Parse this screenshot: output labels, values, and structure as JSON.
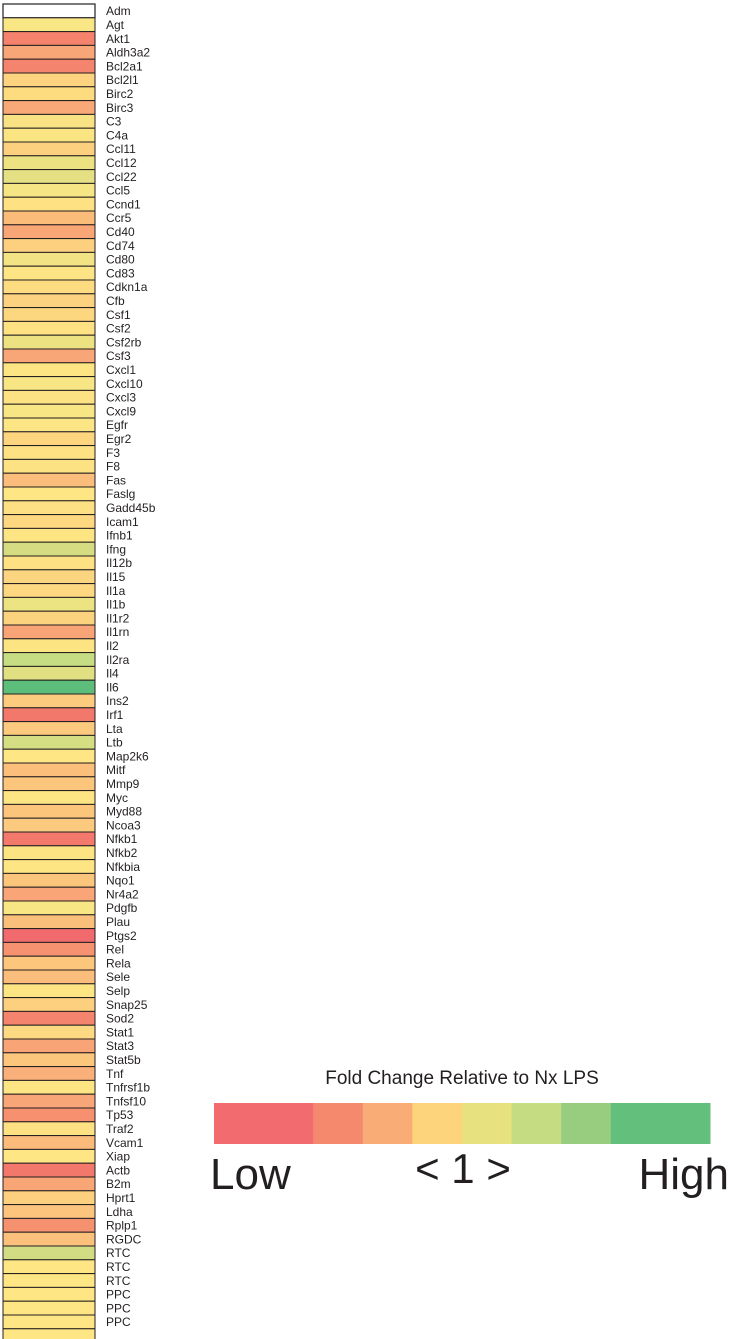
{
  "chart_data": {
    "type": "heatmap",
    "color_scale": {
      "title": "Fold Change Relative to Nx LPS",
      "low_label": "Low",
      "mid_label": "< 1 >",
      "high_label": "High",
      "colors": [
        "#f26b6e",
        "#f26b6e",
        "#f5896e",
        "#f9ac76",
        "#fdd47c",
        "#e8e17f",
        "#c5dc82",
        "#98cd80",
        "#63bf7c",
        "#63bf7c"
      ]
    },
    "columns": [
      ""
    ],
    "rows": [
      {
        "gene": "Adm",
        "color": "#f8e784"
      },
      {
        "gene": "Agt",
        "color": "#f4826c"
      },
      {
        "gene": "Akt1",
        "color": "#f8a677"
      },
      {
        "gene": "Aldh3a2",
        "color": "#f4846d"
      },
      {
        "gene": "Bcl2a1",
        "color": "#fdd380"
      },
      {
        "gene": "Bcl2l1",
        "color": "#fddc80"
      },
      {
        "gene": "Birc2",
        "color": "#f9a877"
      },
      {
        "gene": "Birc3",
        "color": "#f8e283"
      },
      {
        "gene": "C3",
        "color": "#fbe583"
      },
      {
        "gene": "C4a",
        "color": "#fcd07e"
      },
      {
        "gene": "Ccl11",
        "color": "#ece282"
      },
      {
        "gene": "Ccl12",
        "color": "#e4e083"
      },
      {
        "gene": "Ccl22",
        "color": "#f6e585"
      },
      {
        "gene": "Ccl5",
        "color": "#fde182"
      },
      {
        "gene": "Ccnd1",
        "color": "#fbbc7a"
      },
      {
        "gene": "Ccr5",
        "color": "#f9a676"
      },
      {
        "gene": "Cd40",
        "color": "#fcd07e"
      },
      {
        "gene": "Cd74",
        "color": "#f2e384"
      },
      {
        "gene": "Cd80",
        "color": "#fde484"
      },
      {
        "gene": "Cd83",
        "color": "#fddc81"
      },
      {
        "gene": "Cdkn1a",
        "color": "#fcd17f"
      },
      {
        "gene": "Cfb",
        "color": "#fdd680"
      },
      {
        "gene": "Csf1",
        "color": "#fde182"
      },
      {
        "gene": "Csf2",
        "color": "#ece282"
      },
      {
        "gene": "Csf2rb",
        "color": "#f8a577"
      },
      {
        "gene": "Csf3",
        "color": "#fde583"
      },
      {
        "gene": "Cxcl1",
        "color": "#f8e584"
      },
      {
        "gene": "Cxcl10",
        "color": "#fde283"
      },
      {
        "gene": "Cxcl3",
        "color": "#f8e584"
      },
      {
        "gene": "Cxcl9",
        "color": "#fbe584"
      },
      {
        "gene": "Egfr",
        "color": "#fdd57f"
      },
      {
        "gene": "Egr2",
        "color": "#fde182"
      },
      {
        "gene": "F3",
        "color": "#fde283"
      },
      {
        "gene": "F8",
        "color": "#fbbd7b"
      },
      {
        "gene": "Fas",
        "color": "#fde683"
      },
      {
        "gene": "Faslg",
        "color": "#fde083"
      },
      {
        "gene": "Gadd45b",
        "color": "#fdd880"
      },
      {
        "gene": "Icam1",
        "color": "#fde583"
      },
      {
        "gene": "Ifnb1",
        "color": "#d5dc82"
      },
      {
        "gene": "Ifng",
        "color": "#fde182"
      },
      {
        "gene": "Il12b",
        "color": "#fcd580"
      },
      {
        "gene": "Il15",
        "color": "#fdd880"
      },
      {
        "gene": "Il1a",
        "color": "#ece383"
      },
      {
        "gene": "Il1b",
        "color": "#fbd37f"
      },
      {
        "gene": "Il1r2",
        "color": "#f8a477"
      },
      {
        "gene": "Il1rn",
        "color": "#fde483"
      },
      {
        "gene": "Il2",
        "color": "#c6dd83"
      },
      {
        "gene": "Il2ra",
        "color": "#e0e083"
      },
      {
        "gene": "Il4",
        "color": "#5dbd7b"
      },
      {
        "gene": "Il6",
        "color": "#fccb7e"
      },
      {
        "gene": "Ins2",
        "color": "#f3786c"
      },
      {
        "gene": "Irf1",
        "color": "#fcca7e"
      },
      {
        "gene": "Lta",
        "color": "#d6de83"
      },
      {
        "gene": "Ltb",
        "color": "#fde683"
      },
      {
        "gene": "Map2k6",
        "color": "#fbbe7b"
      },
      {
        "gene": "Mitf",
        "color": "#fcc57c"
      },
      {
        "gene": "Mmp9",
        "color": "#fde584"
      },
      {
        "gene": "Myc",
        "color": "#fcc57c"
      },
      {
        "gene": "Myd88",
        "color": "#fcca7e"
      },
      {
        "gene": "Ncoa3",
        "color": "#f3796c"
      },
      {
        "gene": "Nfkb1",
        "color": "#fde482"
      },
      {
        "gene": "Nfkb2",
        "color": "#fde583"
      },
      {
        "gene": "Nfkbia",
        "color": "#fcc57c"
      },
      {
        "gene": "Nqo1",
        "color": "#f9a577"
      },
      {
        "gene": "Nr4a2",
        "color": "#f8e584"
      },
      {
        "gene": "Pdgfb",
        "color": "#fbbf7c"
      },
      {
        "gene": "Plau",
        "color": "#f16a6d"
      },
      {
        "gene": "Ptgs2",
        "color": "#f6926f"
      },
      {
        "gene": "Rel",
        "color": "#fcc77d"
      },
      {
        "gene": "Rela",
        "color": "#fbbd7b"
      },
      {
        "gene": "Sele",
        "color": "#fde584"
      },
      {
        "gene": "Selp",
        "color": "#fcd07e"
      },
      {
        "gene": "Snap25",
        "color": "#f4846d"
      },
      {
        "gene": "Sod2",
        "color": "#fdda81"
      },
      {
        "gene": "Stat1",
        "color": "#f8a476"
      },
      {
        "gene": "Stat3",
        "color": "#fcc67d"
      },
      {
        "gene": "Stat5b",
        "color": "#f9b07a"
      },
      {
        "gene": "Tnf",
        "color": "#fde583"
      },
      {
        "gene": "Tnfrsf1b",
        "color": "#f8a677"
      },
      {
        "gene": "Tnfsf10",
        "color": "#f6906f"
      },
      {
        "gene": "Tp53",
        "color": "#fde182"
      },
      {
        "gene": "Traf2",
        "color": "#fbbb7b"
      },
      {
        "gene": "Vcam1",
        "color": "#fde683"
      },
      {
        "gene": "Xiap",
        "color": "#f3786c"
      },
      {
        "gene": "Actb",
        "color": "#f9a677"
      },
      {
        "gene": "B2m",
        "color": "#fcd07e"
      },
      {
        "gene": "Hprt1",
        "color": "#fcc47d"
      },
      {
        "gene": "Ldha",
        "color": "#f6916f"
      },
      {
        "gene": "Rplp1",
        "color": "#fbc07c"
      },
      {
        "gene": "RGDC",
        "color": "#d2dc83"
      },
      {
        "gene": "RTC",
        "color": "#fde683"
      },
      {
        "gene": "RTC",
        "color": "#fde683"
      },
      {
        "gene": "RTC",
        "color": "#fde683"
      },
      {
        "gene": "PPC",
        "color": "#fde683"
      },
      {
        "gene": "PPC",
        "color": "#fde683"
      },
      {
        "gene": "PPC",
        "color": "#fde683"
      }
    ]
  }
}
